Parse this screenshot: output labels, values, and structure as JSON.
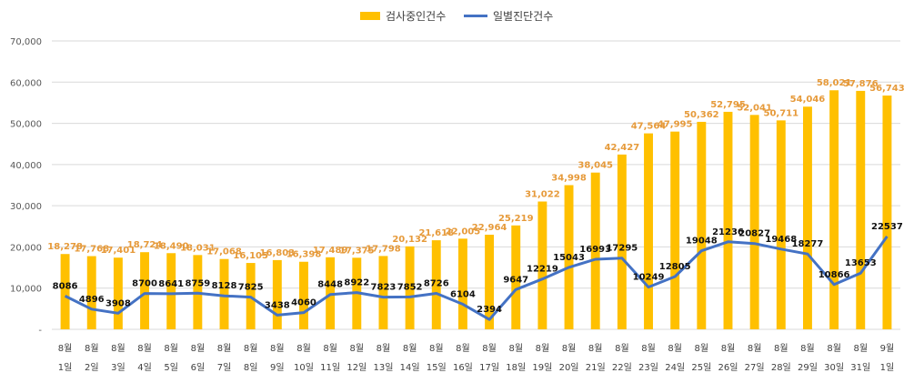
{
  "chart_data": {
    "type": "bar+line",
    "categories": [
      [
        "8월",
        "1일"
      ],
      [
        "8월",
        "2일"
      ],
      [
        "8월",
        "3일"
      ],
      [
        "8월",
        "4일"
      ],
      [
        "8월",
        "5일"
      ],
      [
        "8월",
        "6일"
      ],
      [
        "8월",
        "7일"
      ],
      [
        "8월",
        "8일"
      ],
      [
        "8월",
        "9일"
      ],
      [
        "8월",
        "10일"
      ],
      [
        "8월",
        "11일"
      ],
      [
        "8월",
        "12일"
      ],
      [
        "8월",
        "13일"
      ],
      [
        "8월",
        "14일"
      ],
      [
        "8월",
        "15일"
      ],
      [
        "8월",
        "16일"
      ],
      [
        "8월",
        "17일"
      ],
      [
        "8월",
        "18일"
      ],
      [
        "8월",
        "19일"
      ],
      [
        "8월",
        "20일"
      ],
      [
        "8월",
        "21일"
      ],
      [
        "8월",
        "22일"
      ],
      [
        "8월",
        "23일"
      ],
      [
        "8월",
        "24일"
      ],
      [
        "8월",
        "25일"
      ],
      [
        "8월",
        "26일"
      ],
      [
        "8월",
        "27일"
      ],
      [
        "8월",
        "28일"
      ],
      [
        "8월",
        "29일"
      ],
      [
        "8월",
        "30일"
      ],
      [
        "8월",
        "31일"
      ],
      [
        "9월",
        "1일"
      ]
    ],
    "series": [
      {
        "name": "검사중인건수",
        "type": "bar",
        "color": "#FFC000",
        "label_color": "#E69A3A",
        "values": [
          18278,
          17768,
          17401,
          18724,
          18490,
          18031,
          17068,
          16105,
          16803,
          16398,
          17489,
          17375,
          17798,
          20132,
          21618,
          22005,
          22964,
          25219,
          31022,
          34998,
          38045,
          42427,
          47564,
          47995,
          50362,
          52795,
          52041,
          50711,
          54046,
          58021,
          57876,
          56743
        ],
        "labels": [
          "18,278",
          "17,768",
          "17,401",
          "18,724",
          "18,490",
          "18,031",
          "17,068",
          "16,105",
          "16,803",
          "16,398",
          "17,489",
          "17,375",
          "17,798",
          "20,132",
          "21,618",
          "22,005",
          "22,964",
          "25,219",
          "31,022",
          "34,998",
          "38,045",
          "42,427",
          "47,564",
          "47,995",
          "50,362",
          "52,795",
          "52,041",
          "50,711",
          "54,046",
          "58,021",
          "57,876",
          "56,743"
        ]
      },
      {
        "name": "일별진단건수",
        "type": "line",
        "color": "#4472C4",
        "label_color": "#111111",
        "values": [
          8086,
          4896,
          3908,
          8700,
          8641,
          8759,
          8128,
          7825,
          3438,
          4060,
          8448,
          8922,
          7823,
          7852,
          8726,
          6104,
          2394,
          9647,
          12219,
          15043,
          16993,
          17295,
          10249,
          12805,
          19048,
          21236,
          20827,
          19468,
          18277,
          10866,
          13653,
          22537
        ],
        "labels": [
          "8086",
          "4896",
          "3908",
          "8700",
          "8641",
          "8759",
          "8128",
          "7825",
          "3438",
          "4060",
          "8448",
          "8922",
          "7823",
          "7852",
          "8726",
          "6104",
          "2394",
          "9647",
          "12219",
          "15043",
          "16993",
          "17295",
          "10249",
          "12805",
          "19048",
          "21236",
          "20827",
          "19468",
          "18277",
          "10866",
          "13653",
          "22537"
        ]
      }
    ],
    "ylim": [
      0,
      70000
    ],
    "yticks": [
      0,
      10000,
      20000,
      30000,
      40000,
      50000,
      60000,
      70000
    ],
    "ytick_labels": [
      "-",
      "10,000",
      "20,000",
      "30,000",
      "40,000",
      "50,000",
      "60,000",
      "70,000"
    ],
    "grid": true,
    "legend_position": "top-center",
    "title": "",
    "xlabel": "",
    "ylabel": ""
  }
}
